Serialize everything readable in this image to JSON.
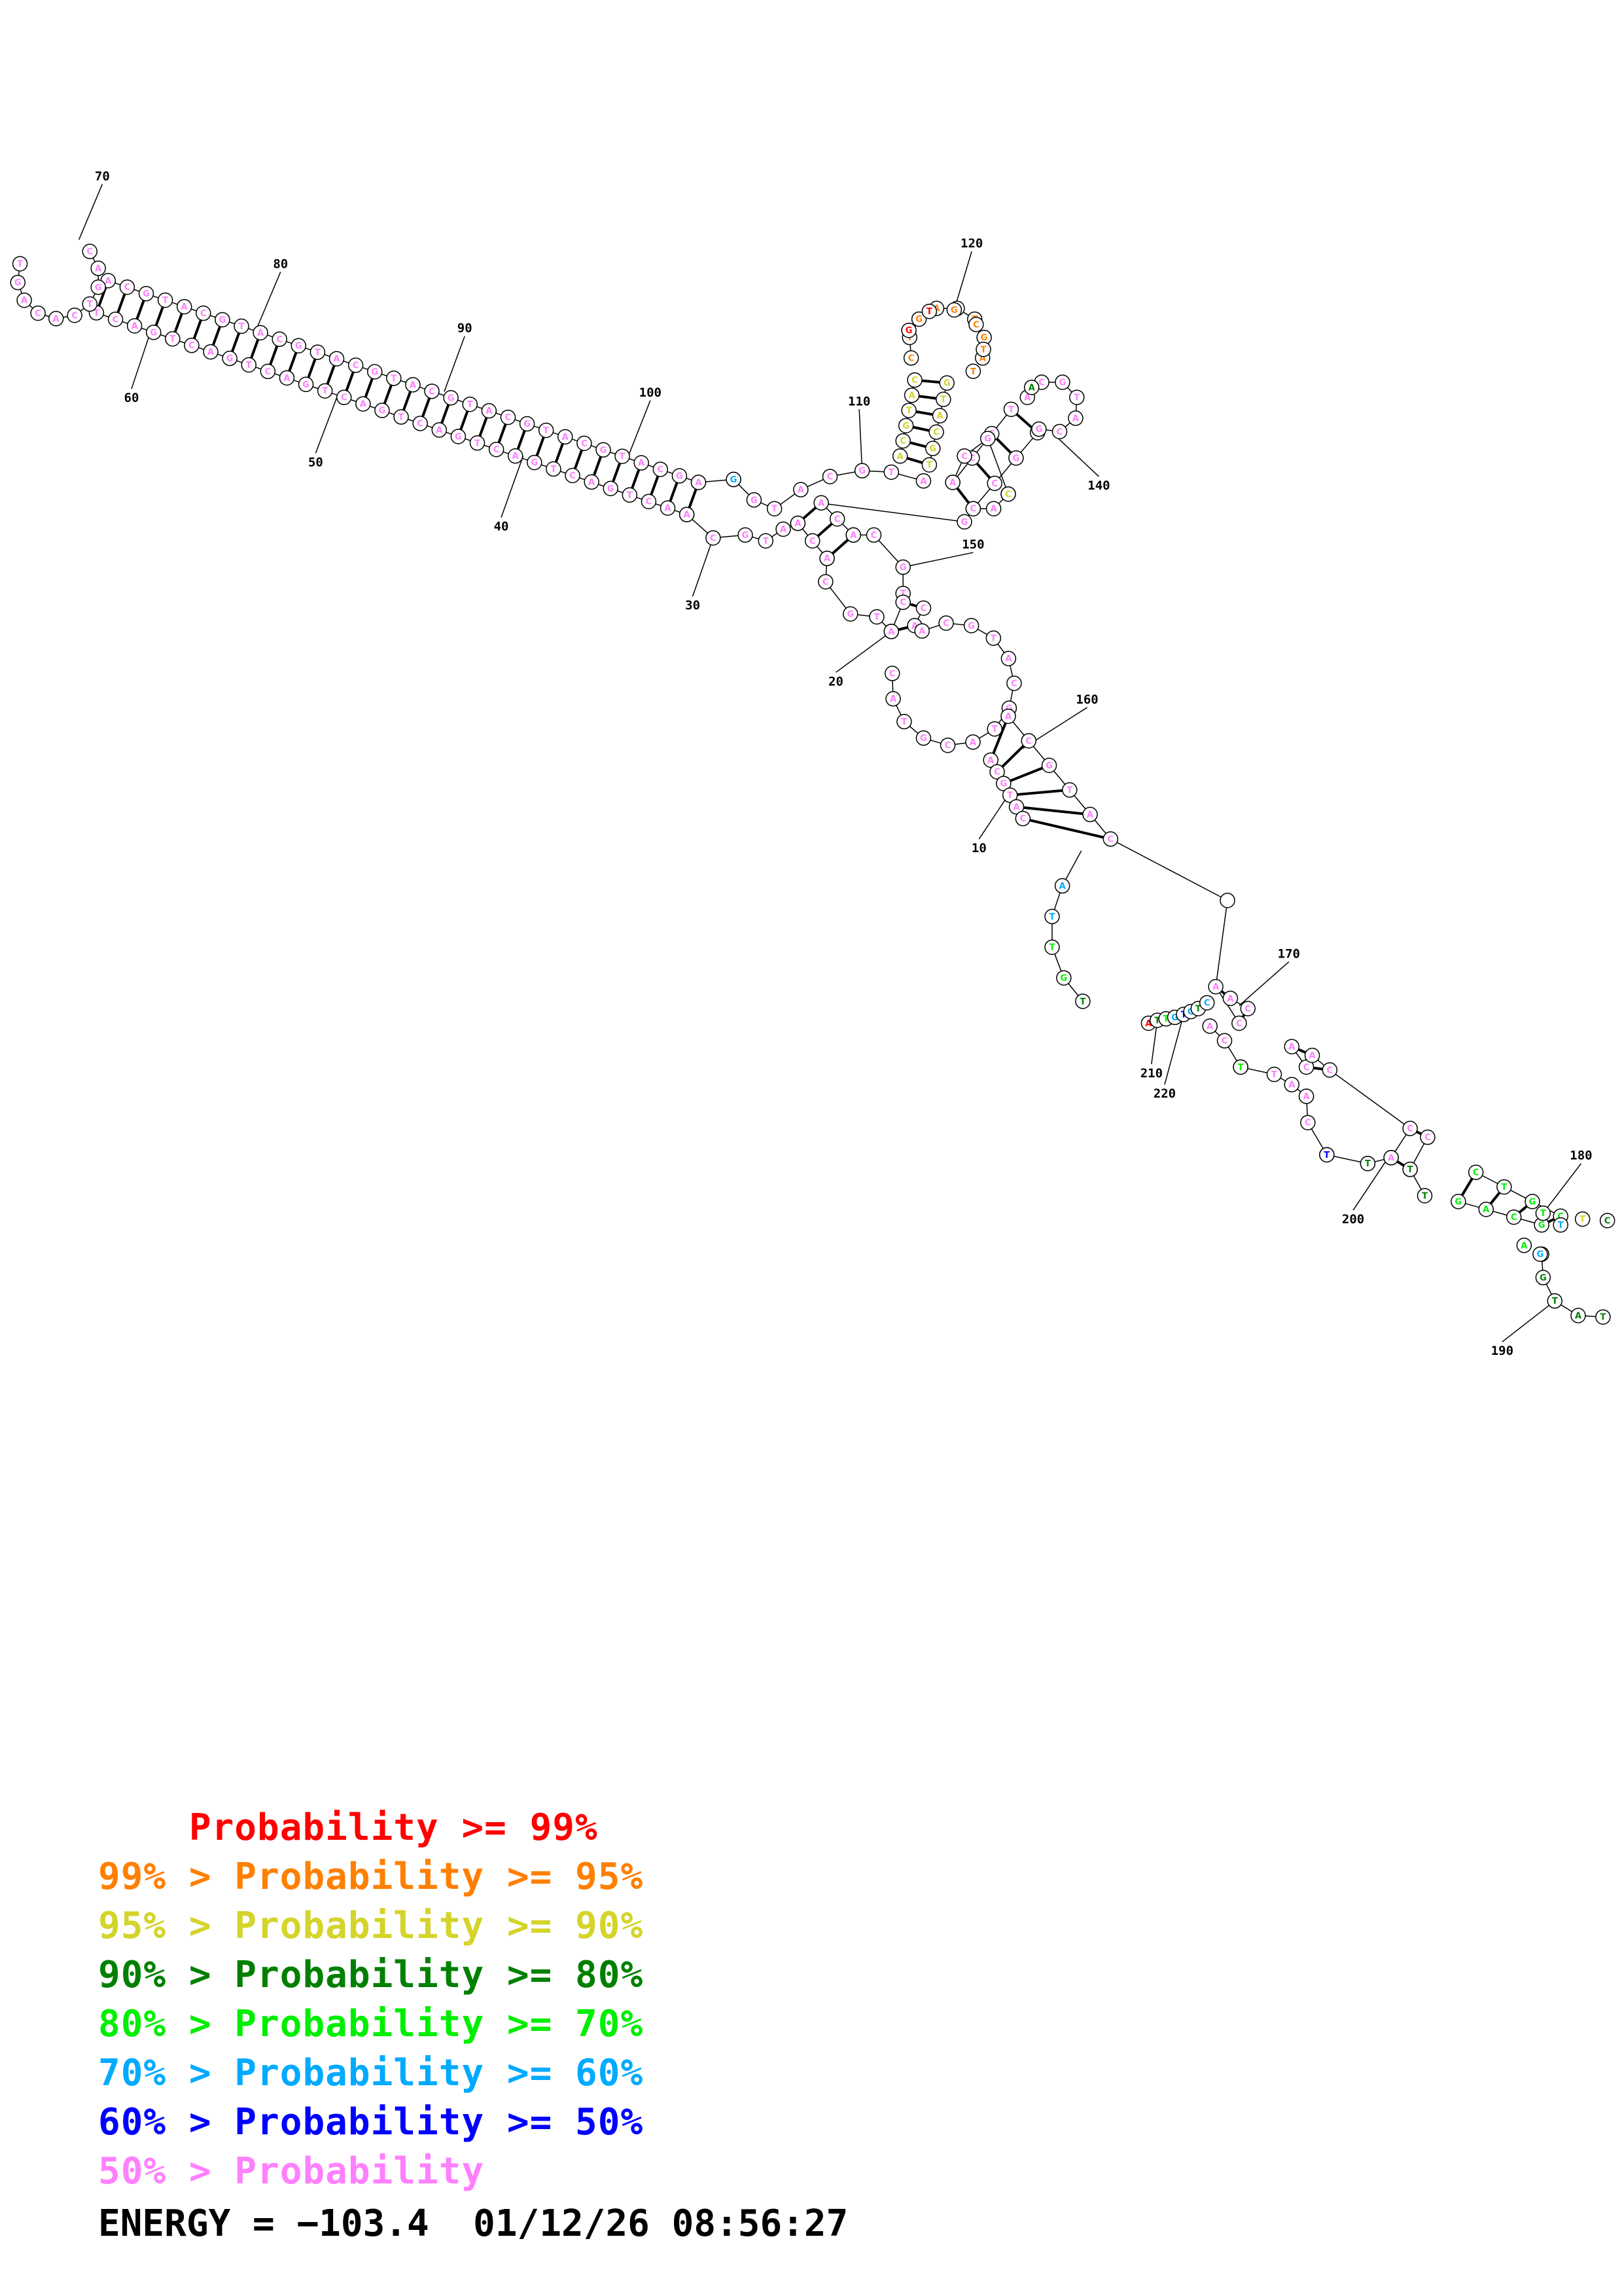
{
  "colors": {
    "p99": "#ff0000",
    "p95": "#ff8000",
    "p90": "#d4d42a",
    "p80": "#008000",
    "p70": "#00ee00",
    "p60": "#00aaff",
    "p50": "#0000ff",
    "plow": "#ff80ff"
  },
  "legend": [
    {
      "prefix": "    ",
      "text": "Probability >= 99%",
      "color_key": "p99"
    },
    {
      "prefix": "99% > ",
      "text": "Probability >= 95%",
      "color_key": "p95"
    },
    {
      "prefix": "95% > ",
      "text": "Probability >= 90%",
      "color_key": "p90"
    },
    {
      "prefix": "90% > ",
      "text": "Probability >= 80%",
      "color_key": "p80"
    },
    {
      "prefix": "80% > ",
      "text": "Probability >= 70%",
      "color_key": "p70"
    },
    {
      "prefix": "70% > ",
      "text": "Probability >= 60%",
      "color_key": "p60"
    },
    {
      "prefix": "60% > ",
      "text": "Probability >= 50%",
      "color_key": "p50"
    },
    {
      "prefix": "50% > ",
      "text": "Probability",
      "color_key": "plow"
    }
  ],
  "energy": {
    "label": "ENERGY = ",
    "value": "−103.4",
    "timestamp": "01/12/26 08:56:27"
  },
  "position_labels": [
    "10",
    "20",
    "30",
    "40",
    "50",
    "60",
    "70",
    "80",
    "90",
    "100",
    "110",
    "120",
    "140",
    "150",
    "160",
    "170",
    "180",
    "190",
    "200",
    "210",
    "220"
  ],
  "nucleotides": [
    {
      "base": "A",
      "prob": "p60"
    },
    {
      "base": "T",
      "prob": "p60"
    },
    {
      "base": "T",
      "prob": "p70"
    },
    {
      "base": "G",
      "prob": "p80"
    },
    {
      "base": "T",
      "prob": "p80"
    },
    {
      "base": "G",
      "prob": "p60"
    },
    {
      "base": "T",
      "prob": "p50"
    },
    {
      "base": "A",
      "prob": "p99"
    },
    {
      "base": "G",
      "prob": "p80"
    },
    {
      "base": "T",
      "prob": "p99"
    },
    {
      "base": "C",
      "prob": "p95"
    },
    {
      "base": "T",
      "prob": "p95"
    },
    {
      "base": "A",
      "prob": "p80"
    }
  ]
}
